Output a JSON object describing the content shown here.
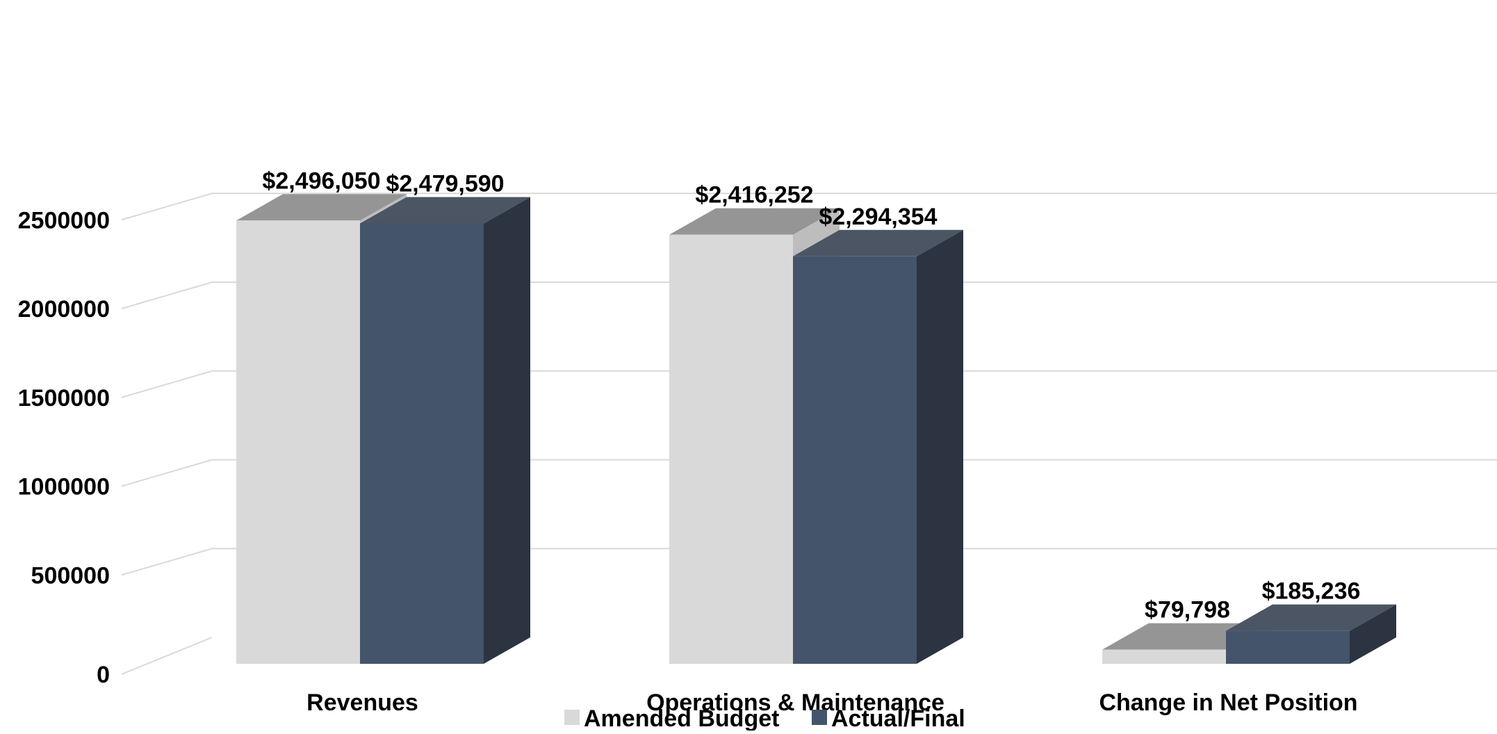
{
  "chart_data": {
    "type": "bar",
    "style": "3d-clustered-column",
    "categories": [
      "Revenues",
      "Operations & Maintenance",
      "Change in Net Position"
    ],
    "series": [
      {
        "name": "Amended Budget",
        "values": [
          2496050,
          2416252,
          79798
        ],
        "labels": [
          "$2,496,050",
          "$2,416,252",
          "$79,798"
        ],
        "color": "#d9d9d9",
        "top_color": "#959595",
        "side_color": "#bdbdbd"
      },
      {
        "name": "Actual/Final",
        "values": [
          2479590,
          2294354,
          185236
        ],
        "labels": [
          "$2,479,590",
          "$2,294,354",
          "$185,236"
        ],
        "color": "#44546a",
        "top_color": "#4b5564",
        "side_color": "#2b3440"
      }
    ],
    "y_ticks": [
      "0",
      "500000",
      "1000000",
      "1500000",
      "2000000",
      "2500000"
    ],
    "ylim": [
      0,
      2750000
    ],
    "grid": true,
    "gridline_color": "#d9d9d9",
    "legend_position": "bottom"
  }
}
